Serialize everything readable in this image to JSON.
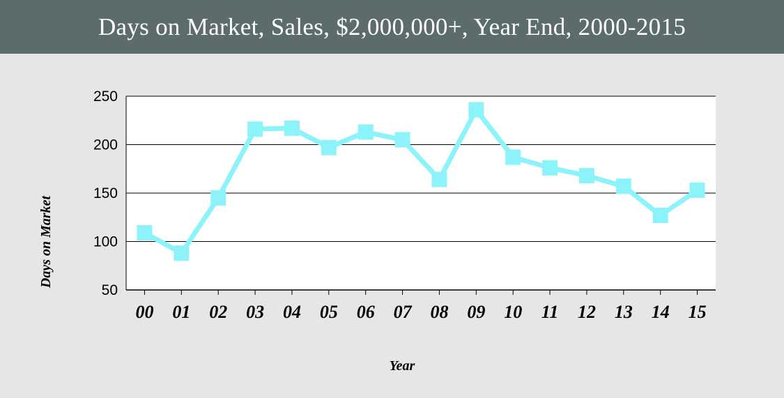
{
  "header": {
    "title": "Days on Market, Sales, $2,000,000+, Year End, 2000-2015"
  },
  "colors": {
    "header_bg": "#5b6c6a",
    "page_bg": "#e6e6e6",
    "plot_bg": "#ffffff",
    "series": "#8cf3fb"
  },
  "chart_data": {
    "type": "line",
    "title": "Days on Market, Sales, $2,000,000+, Year End, 2000-2015",
    "xlabel": "Year",
    "ylabel": "Days on Market",
    "categories": [
      "00",
      "01",
      "02",
      "03",
      "04",
      "05",
      "06",
      "07",
      "08",
      "09",
      "10",
      "11",
      "12",
      "13",
      "14",
      "15"
    ],
    "series": [
      {
        "values": [
          109,
          88,
          145,
          216,
          217,
          197,
          213,
          205,
          164,
          236,
          187,
          176,
          168,
          157,
          127,
          153
        ]
      }
    ],
    "ylim": [
      50,
      250
    ],
    "yticks": [
      50,
      100,
      150,
      200,
      250
    ],
    "grid": true,
    "legend": "none",
    "marker": "square"
  }
}
